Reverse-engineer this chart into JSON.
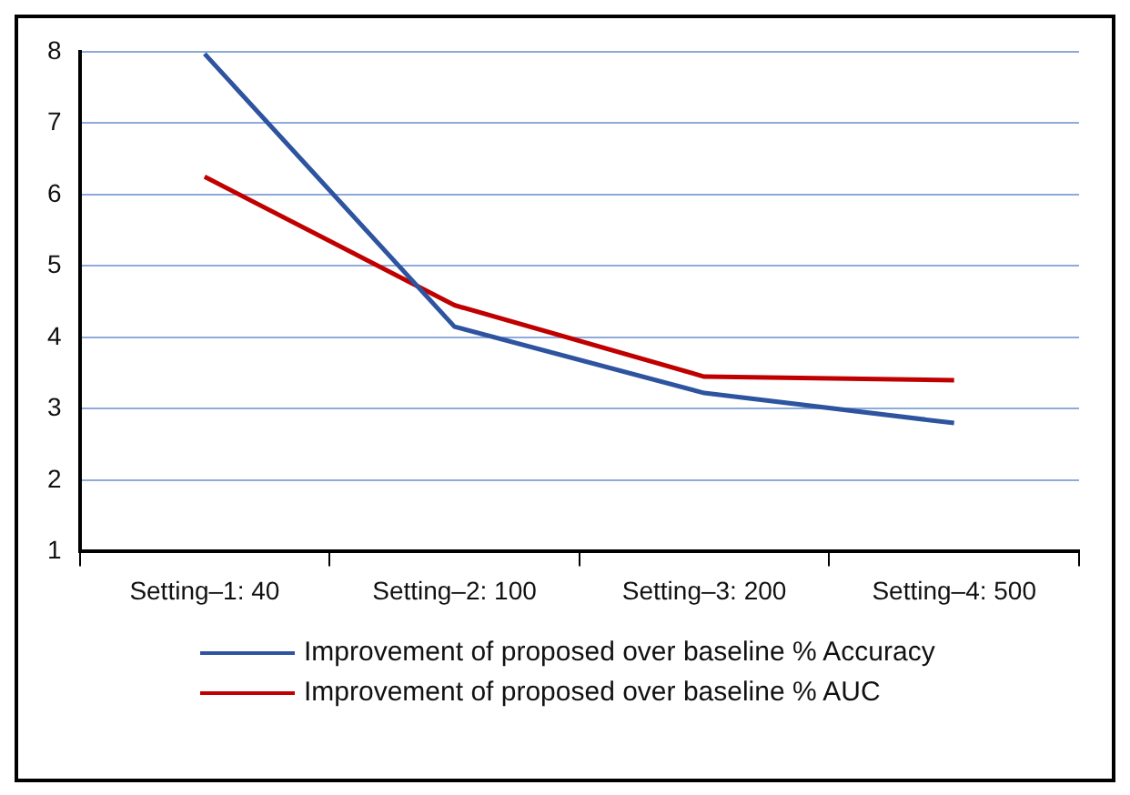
{
  "chart_data": {
    "type": "line",
    "categories": [
      "Setting–1: 40",
      "Setting–2: 100",
      "Setting–3: 200",
      "Setting–4: 500"
    ],
    "series": [
      {
        "name": "Improvement of proposed over baseline % Accuracy",
        "color": "#2e54a0",
        "values": [
          7.97,
          4.15,
          3.22,
          2.8
        ]
      },
      {
        "name": "Improvement of proposed over baseline % AUC",
        "color": "#c00000",
        "values": [
          6.25,
          4.45,
          3.45,
          3.4
        ]
      }
    ],
    "ylim": [
      1,
      8
    ],
    "yticks": [
      1,
      2,
      3,
      4,
      5,
      6,
      7,
      8
    ],
    "grid": "y",
    "legend": "bottom",
    "marker": "none",
    "line_style": "solid"
  }
}
